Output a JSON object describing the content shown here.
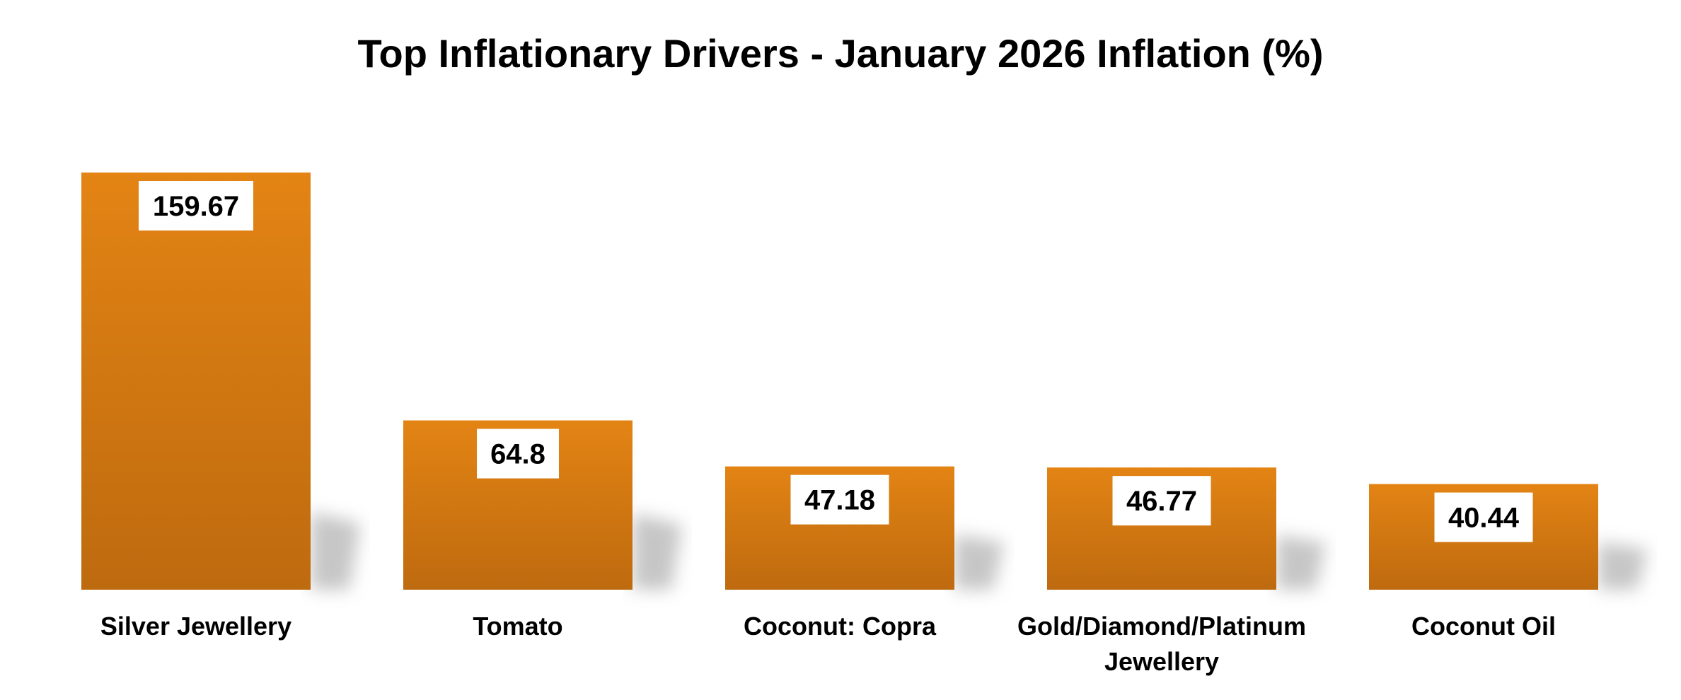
{
  "chart_data": {
    "type": "bar",
    "title": "Top Inflationary Drivers - January 2026 Inflation (%)",
    "xlabel": "",
    "ylabel": "",
    "categories": [
      "Silver Jewellery",
      "Tomato",
      "Coconut: Copra",
      "Gold/Diamond/Platinum Jewellery",
      "Coconut Oil"
    ],
    "values": [
      159.67,
      64.8,
      47.18,
      46.77,
      40.44
    ],
    "data_labels": [
      "159.67",
      "64.8",
      "47.18",
      "46.77",
      "40.44"
    ],
    "grid": false,
    "legend": "none",
    "colors": {
      "bar_top": "#E38414",
      "bar_bottom": "#BE6A0F",
      "label_box": "#FFFFFF",
      "shadow": "#B4B4B4"
    }
  }
}
